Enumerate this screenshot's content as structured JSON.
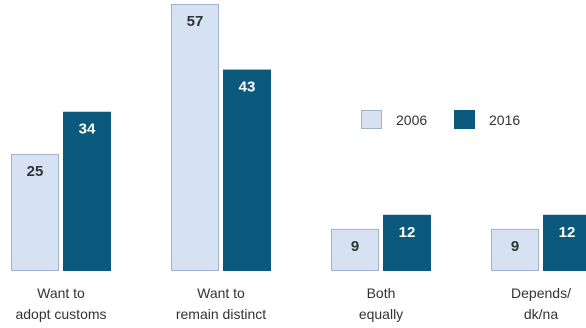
{
  "chart_data": {
    "type": "bar",
    "categories": [
      [
        "Want to",
        "adopt customs"
      ],
      [
        "Want to",
        "remain distinct"
      ],
      [
        "Both",
        "equally"
      ],
      [
        "Depends/",
        "dk/na"
      ]
    ],
    "series": [
      {
        "name": "2006",
        "values": [
          25,
          57,
          9,
          9
        ],
        "color": "#d6e1f2",
        "border": "#9fb3d1",
        "label_color": "#333333"
      },
      {
        "name": "2016",
        "values": [
          34,
          43,
          12,
          12
        ],
        "color": "#0b5a7e",
        "border": "#0b5a7e",
        "label_color": "#ffffff"
      }
    ],
    "title": "",
    "xlabel": "",
    "ylabel": "",
    "ylim": [
      0,
      57
    ],
    "grid": false,
    "legend": "right, inside plot"
  }
}
